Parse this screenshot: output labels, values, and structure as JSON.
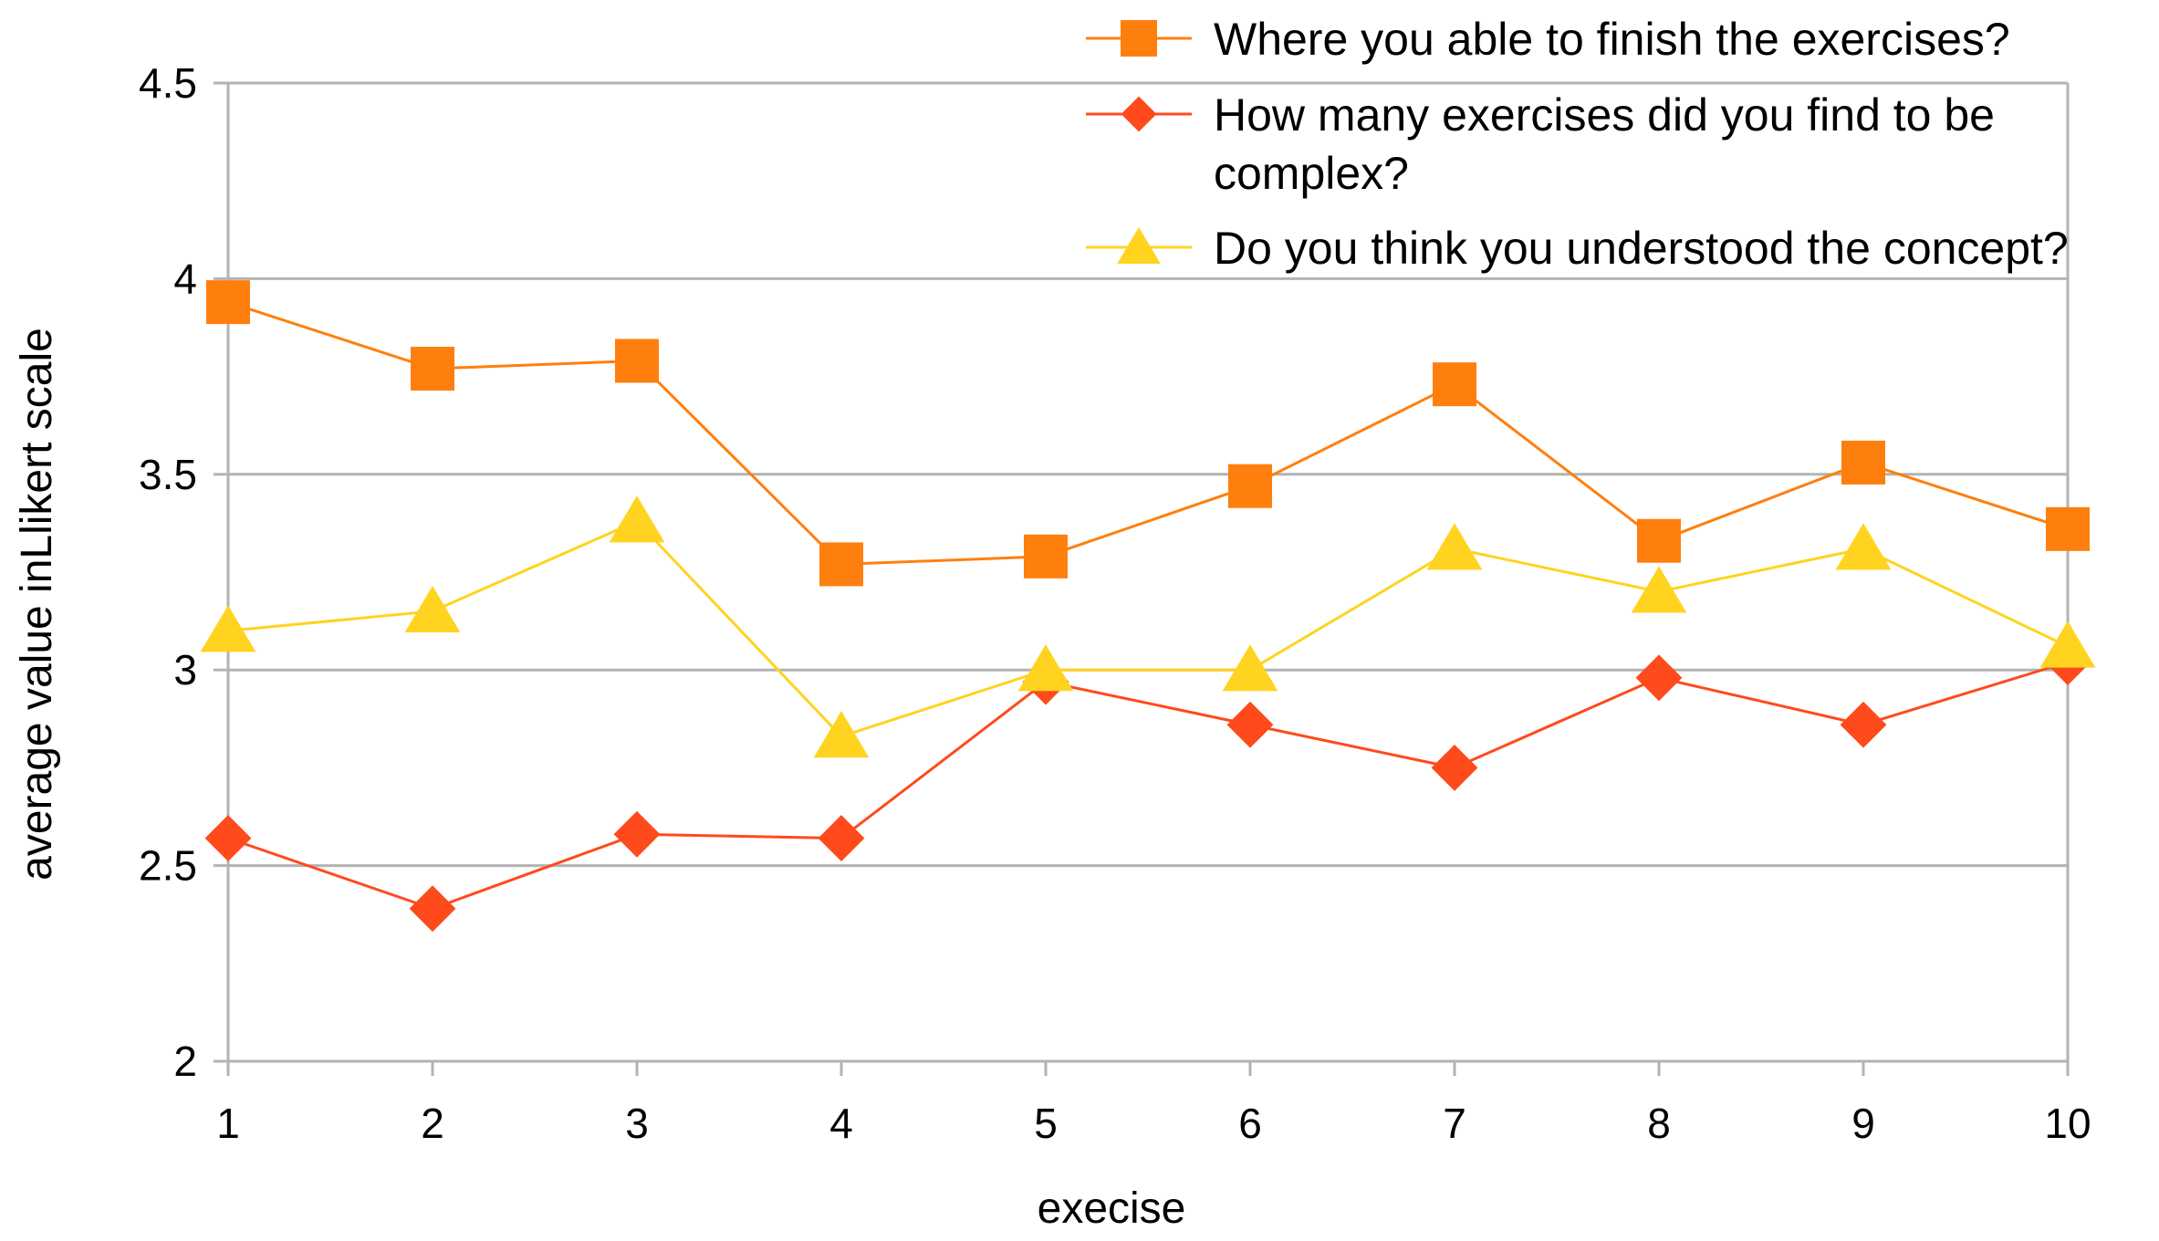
{
  "chart_data": {
    "type": "line",
    "title": "",
    "xlabel": "execise",
    "ylabel": "average value inLlikert scale",
    "x": [
      1,
      2,
      3,
      4,
      5,
      6,
      7,
      8,
      9,
      10
    ],
    "xlim": [
      1,
      10
    ],
    "ylim": [
      2,
      4.5
    ],
    "yticks": [
      2,
      2.5,
      3,
      3.5,
      4,
      4.5
    ],
    "grid": "horizontal",
    "legend_position": "top-right",
    "series": [
      {
        "name": "Where you able to finish the exercises?",
        "name_lines": [
          "Where you able to finish the exercises?"
        ],
        "marker": "square",
        "color": "#ff7f0e",
        "marker_color": "#ff7f0e",
        "values": [
          3.94,
          3.77,
          3.79,
          3.27,
          3.29,
          3.47,
          3.73,
          3.33,
          3.53,
          3.36
        ]
      },
      {
        "name": "How many exercises did you find to be complex?",
        "name_lines": [
          "How many exercises did you find to be",
          "complex?"
        ],
        "marker": "diamond",
        "color": "#ff4a1c",
        "marker_color": "#ff4a1c",
        "values": [
          2.57,
          2.39,
          2.58,
          2.57,
          2.97,
          2.86,
          2.75,
          2.98,
          2.86,
          3.02
        ]
      },
      {
        "name": "Do you think you understood the concept?",
        "name_lines": [
          "Do you think you understood the concept?"
        ],
        "marker": "triangle",
        "color": "#ffd320",
        "marker_color": "#ffd320",
        "values": [
          3.1,
          3.15,
          3.38,
          2.83,
          3.0,
          3.0,
          3.31,
          3.2,
          3.31,
          3.06
        ]
      }
    ]
  }
}
